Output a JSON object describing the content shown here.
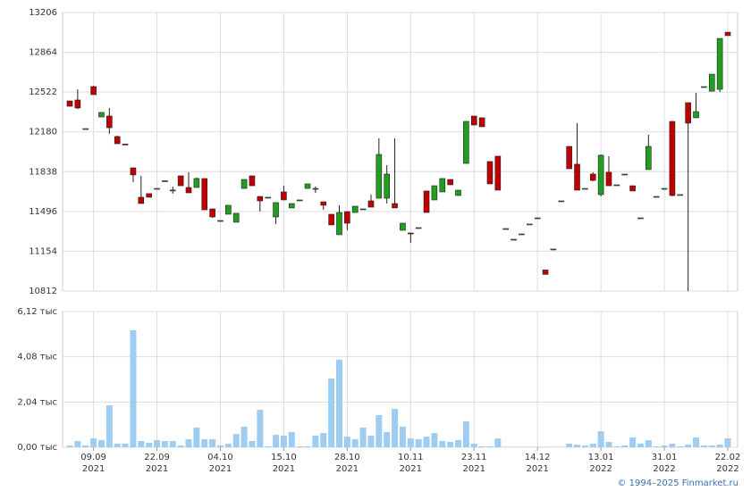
{
  "chart_data": {
    "type": "candlestick",
    "categories": [
      null,
      null,
      null,
      "09.09",
      null,
      null,
      null,
      null,
      null,
      null,
      null,
      "22.09",
      null,
      null,
      null,
      null,
      null,
      null,
      null,
      "04.10",
      null,
      null,
      null,
      null,
      null,
      null,
      null,
      "15.10",
      null,
      null,
      null,
      null,
      null,
      null,
      null,
      "28.10",
      null,
      null,
      null,
      null,
      null,
      null,
      null,
      "10.11",
      null,
      null,
      null,
      null,
      null,
      null,
      null,
      "23.11",
      null,
      null,
      null,
      null,
      null,
      null,
      null,
      "14.12",
      null,
      null,
      null,
      null,
      null,
      null,
      null,
      "13.01",
      null,
      null,
      null,
      null,
      null,
      null,
      null,
      "31.01",
      null,
      null,
      null,
      null,
      null,
      null,
      null,
      "22.02"
    ],
    "years": [
      null,
      null,
      null,
      "2021",
      null,
      null,
      null,
      null,
      null,
      null,
      null,
      "2021",
      null,
      null,
      null,
      null,
      null,
      null,
      null,
      "2021",
      null,
      null,
      null,
      null,
      null,
      null,
      null,
      "2021",
      null,
      null,
      null,
      null,
      null,
      null,
      null,
      "2021",
      null,
      null,
      null,
      null,
      null,
      null,
      null,
      "2021",
      null,
      null,
      null,
      null,
      null,
      null,
      null,
      "2021",
      null,
      null,
      null,
      null,
      null,
      null,
      null,
      "2021",
      null,
      null,
      null,
      null,
      null,
      null,
      null,
      "2022",
      null,
      null,
      null,
      null,
      null,
      null,
      null,
      "2022",
      null,
      null,
      null,
      null,
      null,
      null,
      null,
      "2022"
    ],
    "open": [
      12446,
      12454,
      12208,
      12569,
      12308,
      12316,
      12140,
      12075,
      11871,
      11618,
      11649,
      11694,
      11752,
      11680,
      11802,
      11702,
      11702,
      11779,
      11518,
      11418,
      11472,
      11403,
      11694,
      11802,
      11625,
      11618,
      11449,
      11664,
      11526,
      11595,
      11694,
      11694,
      11579,
      11472,
      11296,
      11495,
      11487,
      11518,
      11587,
      11610,
      11610,
      11564,
      11334,
      11311,
      11357,
      11672,
      11595,
      11664,
      11771,
      11633,
      11909,
      12316,
      12301,
      11925,
      11971,
      11349,
      11257,
      11303,
      11388,
      11441,
      10993,
      11173,
      11587,
      12055,
      11902,
      11694,
      11817,
      11641,
      11833,
      11725,
      11817,
      11717,
      11441,
      11856,
      11625,
      11694,
      12270,
      11641,
      12431,
      12301,
      12569,
      12530,
      12546,
      13037
    ],
    "high": [
      12446,
      12546,
      12208,
      12577,
      12347,
      12385,
      12147,
      12075,
      11871,
      11802,
      11649,
      11694,
      11760,
      11710,
      11802,
      11833,
      11787,
      11779,
      11518,
      11418,
      11549,
      11480,
      11771,
      11802,
      11625,
      11618,
      11572,
      11717,
      11564,
      11595,
      11733,
      11710,
      11579,
      11472,
      11549,
      11495,
      11541,
      11518,
      11641,
      12124,
      11894,
      12124,
      11395,
      11311,
      11357,
      11672,
      11717,
      11779,
      11771,
      11679,
      12270,
      12316,
      12301,
      11925,
      11971,
      11349,
      11257,
      11303,
      11388,
      11441,
      10993,
      11173,
      11587,
      12055,
      12255,
      11694,
      11833,
      11986,
      11971,
      11725,
      11817,
      11717,
      11441,
      12155,
      11625,
      11694,
      12270,
      11641,
      12431,
      12515,
      12569,
      12676,
      12983,
      13037
    ],
    "low": [
      12400,
      12377,
      12208,
      12500,
      12308,
      12163,
      12078,
      12068,
      11748,
      11564,
      11618,
      11694,
      11752,
      11649,
      11717,
      11656,
      11702,
      11510,
      11441,
      11418,
      11472,
      11403,
      11694,
      11717,
      11495,
      11618,
      11388,
      11595,
      11526,
      11595,
      11694,
      11656,
      11510,
      11380,
      11296,
      11334,
      11487,
      11518,
      11533,
      11610,
      11564,
      11526,
      11334,
      11227,
      11357,
      11487,
      11595,
      11664,
      11725,
      11633,
      11909,
      12239,
      12224,
      11733,
      11679,
      11349,
      11257,
      11303,
      11388,
      11441,
      10955,
      11173,
      11587,
      11863,
      11679,
      11694,
      11756,
      11625,
      11717,
      11725,
      11817,
      11672,
      11441,
      11856,
      11625,
      11694,
      11625,
      11641,
      10812,
      12301,
      12569,
      12530,
      12522,
      13007
    ],
    "close": [
      12400,
      12385,
      12208,
      12500,
      12347,
      12216,
      12078,
      12068,
      11810,
      11564,
      11618,
      11694,
      11760,
      11680,
      11717,
      11656,
      11779,
      11510,
      11449,
      11418,
      11549,
      11480,
      11771,
      11717,
      11587,
      11618,
      11572,
      11595,
      11564,
      11595,
      11733,
      11694,
      11549,
      11380,
      11487,
      11395,
      11541,
      11518,
      11533,
      11986,
      11817,
      11526,
      11395,
      11303,
      11357,
      11487,
      11717,
      11779,
      11725,
      11679,
      12270,
      12239,
      12224,
      11733,
      11679,
      11349,
      11257,
      11303,
      11388,
      11441,
      10955,
      11173,
      11587,
      11863,
      11679,
      11694,
      11763,
      11979,
      11717,
      11725,
      11817,
      11672,
      11441,
      12055,
      11625,
      11694,
      11633,
      11641,
      12255,
      12354,
      12569,
      12676,
      12983,
      13007
    ],
    "volume": [
      0.08,
      0.28,
      0.08,
      0.4,
      0.32,
      1.89,
      0.16,
      0.16,
      5.28,
      0.28,
      0.2,
      0.32,
      0.28,
      0.28,
      0.08,
      0.36,
      0.89,
      0.36,
      0.36,
      0.08,
      0.16,
      0.6,
      0.93,
      0.28,
      1.69,
      0.04,
      0.56,
      0.52,
      0.69,
      0.04,
      0.04,
      0.52,
      0.64,
      3.1,
      3.95,
      0.48,
      0.36,
      0.89,
      0.52,
      1.45,
      0.69,
      1.73,
      0.93,
      0.4,
      0.36,
      0.48,
      0.64,
      0.28,
      0.24,
      0.32,
      1.17,
      0.16,
      0.04,
      0.04,
      0.4,
      0.02,
      0.02,
      0.02,
      0.02,
      0.02,
      0.02,
      0.02,
      0.02,
      0.16,
      0.12,
      0.08,
      0.16,
      0.72,
      0.24,
      0.04,
      0.08,
      0.44,
      0.16,
      0.32,
      0.04,
      0.08,
      0.16,
      0.04,
      0.12,
      0.44,
      0.08,
      0.08,
      0.12,
      0.4
    ],
    "up_color": "#1f9e1f",
    "down_color": "#c00000",
    "volume_color": "#9fcdf2",
    "ylim": [
      10812,
      13206
    ],
    "yticks": [
      10812,
      11154,
      11496,
      11838,
      12180,
      12522,
      12864,
      13206
    ],
    "y2lim": [
      0,
      6.12
    ],
    "y2ticks": [
      {
        "value": 0,
        "label": "0,00 тыс"
      },
      {
        "value": 2.04,
        "label": "2,04 тыс"
      },
      {
        "value": 4.08,
        "label": "4,08 тыс"
      },
      {
        "value": 6.12,
        "label": "6,12 тыс"
      }
    ],
    "grid": true,
    "footer": "© 1994–2025 Finmarket.ru"
  }
}
